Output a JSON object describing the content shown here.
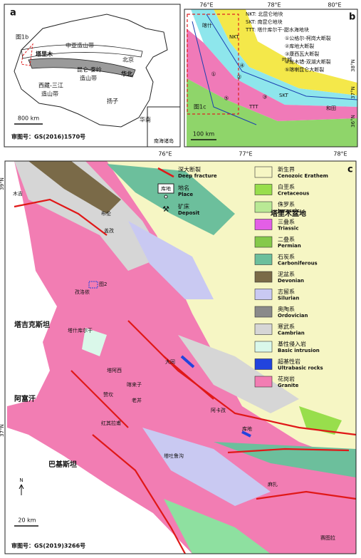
{
  "panel_a": {
    "label": "a",
    "fig_ref": "图1b",
    "regions": [
      "中亚造山带",
      "塔里木",
      "北京",
      "华北",
      "昆仑-秦岭",
      "造山带",
      "西藏-三江",
      "造山带",
      "扬子",
      "华南"
    ],
    "scale": "800 km",
    "approval": "审图号：GS(2016)1570号",
    "inset": "南海诸岛"
  },
  "panel_b": {
    "label": "b",
    "lon": [
      "76°E",
      "78°E",
      "80°E"
    ],
    "lat": [
      "38°N",
      "37°N",
      "36°N"
    ],
    "legend": [
      "NKT: 北昆仑地块",
      "SKT: 南昆仑地块",
      "TTT: 塔什库尔干-甜水海地块"
    ],
    "faults": [
      "①公格尔-柯岗大断裂",
      "②库地大断裂",
      "③康西瓦大断裂",
      "④龙木错-双湖大断裂",
      "⑤喀喇昆仑大断裂"
    ],
    "fault_numbers": [
      "①",
      "②",
      "③",
      "④",
      "⑤"
    ],
    "terranes": [
      "NKT",
      "SKT",
      "TTT"
    ],
    "places": [
      "叶城",
      "和田",
      "喀什"
    ],
    "fig_ref": "图1c",
    "scale": "100 km"
  },
  "panel_c": {
    "label": "c",
    "lon": [
      "76°E",
      "77°E",
      "78°E"
    ],
    "lat": [
      "39°N",
      "37°N"
    ],
    "symbols": [
      {
        "zh": "深大断裂",
        "en": "Deep fracture"
      },
      {
        "zh": "地名",
        "en": "Place",
        "sample": "库地"
      },
      {
        "zh": "矿床",
        "en": "Deposit"
      }
    ],
    "strata": [
      {
        "zh": "新生界",
        "en": "Cenozoic Erathem",
        "color": "#f6f6c4"
      },
      {
        "zh": "白垩系",
        "en": "Cretaceous",
        "color": "#98de4c"
      },
      {
        "zh": "侏罗系",
        "en": "Jurassic",
        "color": "#b9e995"
      },
      {
        "zh": "三叠系",
        "en": "Triassic",
        "color": "#e35ee6"
      },
      {
        "zh": "二叠系",
        "en": "Permian",
        "color": "#85c94a"
      },
      {
        "zh": "石炭系",
        "en": "Carboniferous",
        "color": "#6cbf9c"
      },
      {
        "zh": "泥盆系",
        "en": "Devonian",
        "color": "#7a6a48"
      },
      {
        "zh": "志留系",
        "en": "Silurian",
        "color": "#c9c9f2"
      },
      {
        "zh": "奥陶系",
        "en": "Ordovician",
        "color": "#8a8a8a"
      },
      {
        "zh": "寒武系",
        "en": "Cambrian",
        "color": "#d6d6d6"
      },
      {
        "zh": "基性侵入岩",
        "en": "Basic intrusion",
        "color": "#daf8ea"
      },
      {
        "zh": "超基性岩",
        "en": "Ultrabasic rocks",
        "color": "#2244dd"
      },
      {
        "zh": "花岗岩",
        "en": "Granite",
        "color": "#f27db3"
      }
    ],
    "places": [
      "木吉",
      "布伦",
      "盖孜",
      "塔里木盆地",
      "塔吉克斯坦",
      "阿富汗",
      "巴基斯坦",
      "塔什库尔干",
      "塔阿西",
      "喀来子",
      "赞坎",
      "老并",
      "红其拉甫",
      "塔吐鲁沟",
      "大同",
      "库地",
      "阿卡孜",
      "麻扎",
      "赛图拉",
      "孜洛依",
      "图2"
    ],
    "north": "N",
    "scale": "20 km",
    "approval": "审图号：GS(2019)3266号"
  }
}
